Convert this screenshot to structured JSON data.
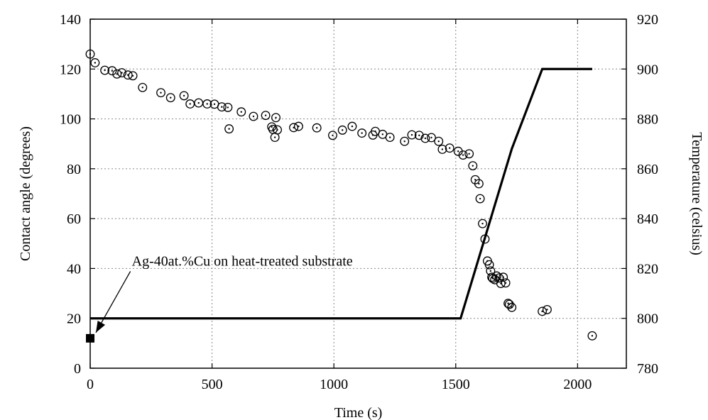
{
  "chart_data": {
    "type": "scatter",
    "title": "",
    "xlabel": "Time (s)",
    "ylabel": "Contact angle (degrees)",
    "y2label": "Temperature (celsius)",
    "xlim": [
      0,
      2200
    ],
    "ylim": [
      0,
      140
    ],
    "y2lim": [
      780,
      920
    ],
    "grid": true,
    "x_ticks": [
      0,
      500,
      1000,
      1500,
      2000
    ],
    "y_ticks": [
      0,
      20,
      40,
      60,
      80,
      100,
      120,
      140
    ],
    "y2_ticks": [
      780,
      800,
      820,
      840,
      860,
      880,
      900,
      920
    ],
    "series": [
      {
        "style": "open-circle-dot",
        "axis": "left",
        "points": [
          [
            0,
            126
          ],
          [
            20,
            122.5
          ],
          [
            60,
            119.5
          ],
          [
            90,
            119.3
          ],
          [
            110,
            118
          ],
          [
            130,
            118.5
          ],
          [
            155,
            117.6
          ],
          [
            175,
            117.3
          ],
          [
            215,
            112.6
          ],
          [
            290,
            110.5
          ],
          [
            330,
            108.5
          ],
          [
            385,
            109.3
          ],
          [
            410,
            106
          ],
          [
            445,
            106.4
          ],
          [
            480,
            106
          ],
          [
            510,
            105.9
          ],
          [
            540,
            104.8
          ],
          [
            565,
            104.6
          ],
          [
            570,
            96
          ],
          [
            620,
            102.8
          ],
          [
            670,
            101
          ],
          [
            720,
            101.4
          ],
          [
            745,
            96.8
          ],
          [
            750,
            95.8
          ],
          [
            758,
            92.6
          ],
          [
            762,
            100.5
          ],
          [
            768,
            95.6
          ],
          [
            835,
            96.5
          ],
          [
            855,
            97
          ],
          [
            930,
            96.4
          ],
          [
            995,
            93.4
          ],
          [
            1035,
            95.5
          ],
          [
            1075,
            97
          ],
          [
            1115,
            94.3
          ],
          [
            1160,
            93.5
          ],
          [
            1170,
            95
          ],
          [
            1200,
            93.8
          ],
          [
            1230,
            92.6
          ],
          [
            1290,
            91
          ],
          [
            1320,
            93.6
          ],
          [
            1350,
            93.4
          ],
          [
            1375,
            92.2
          ],
          [
            1400,
            92.5
          ],
          [
            1430,
            91
          ],
          [
            1445,
            87.8
          ],
          [
            1475,
            88.3
          ],
          [
            1510,
            87
          ],
          [
            1530,
            85.5
          ],
          [
            1555,
            86
          ],
          [
            1570,
            81.2
          ],
          [
            1580,
            75.6
          ],
          [
            1595,
            74
          ],
          [
            1600,
            68
          ],
          [
            1610,
            58
          ],
          [
            1620,
            51.8
          ],
          [
            1630,
            43
          ],
          [
            1638,
            41.5
          ],
          [
            1643,
            39
          ],
          [
            1648,
            36.5
          ],
          [
            1652,
            36
          ],
          [
            1660,
            35.5
          ],
          [
            1668,
            37
          ],
          [
            1678,
            36.2
          ],
          [
            1685,
            34
          ],
          [
            1695,
            36.5
          ],
          [
            1705,
            34.2
          ],
          [
            1715,
            26
          ],
          [
            1720,
            25.6
          ],
          [
            1730,
            24.4
          ],
          [
            1855,
            22.8
          ],
          [
            1875,
            23.5
          ],
          [
            2060,
            13
          ]
        ]
      },
      {
        "style": "line",
        "axis": "right",
        "points": [
          [
            0,
            800
          ],
          [
            1520,
            800
          ],
          [
            1730,
            868
          ],
          [
            1855,
            900
          ],
          [
            2060,
            900
          ]
        ]
      }
    ],
    "annotations": [
      {
        "text": "Ag-40at.%Cu on heat-treated substrate",
        "marker": [
          0,
          12
        ],
        "arrow_from": [
          165,
          40
        ]
      }
    ]
  }
}
